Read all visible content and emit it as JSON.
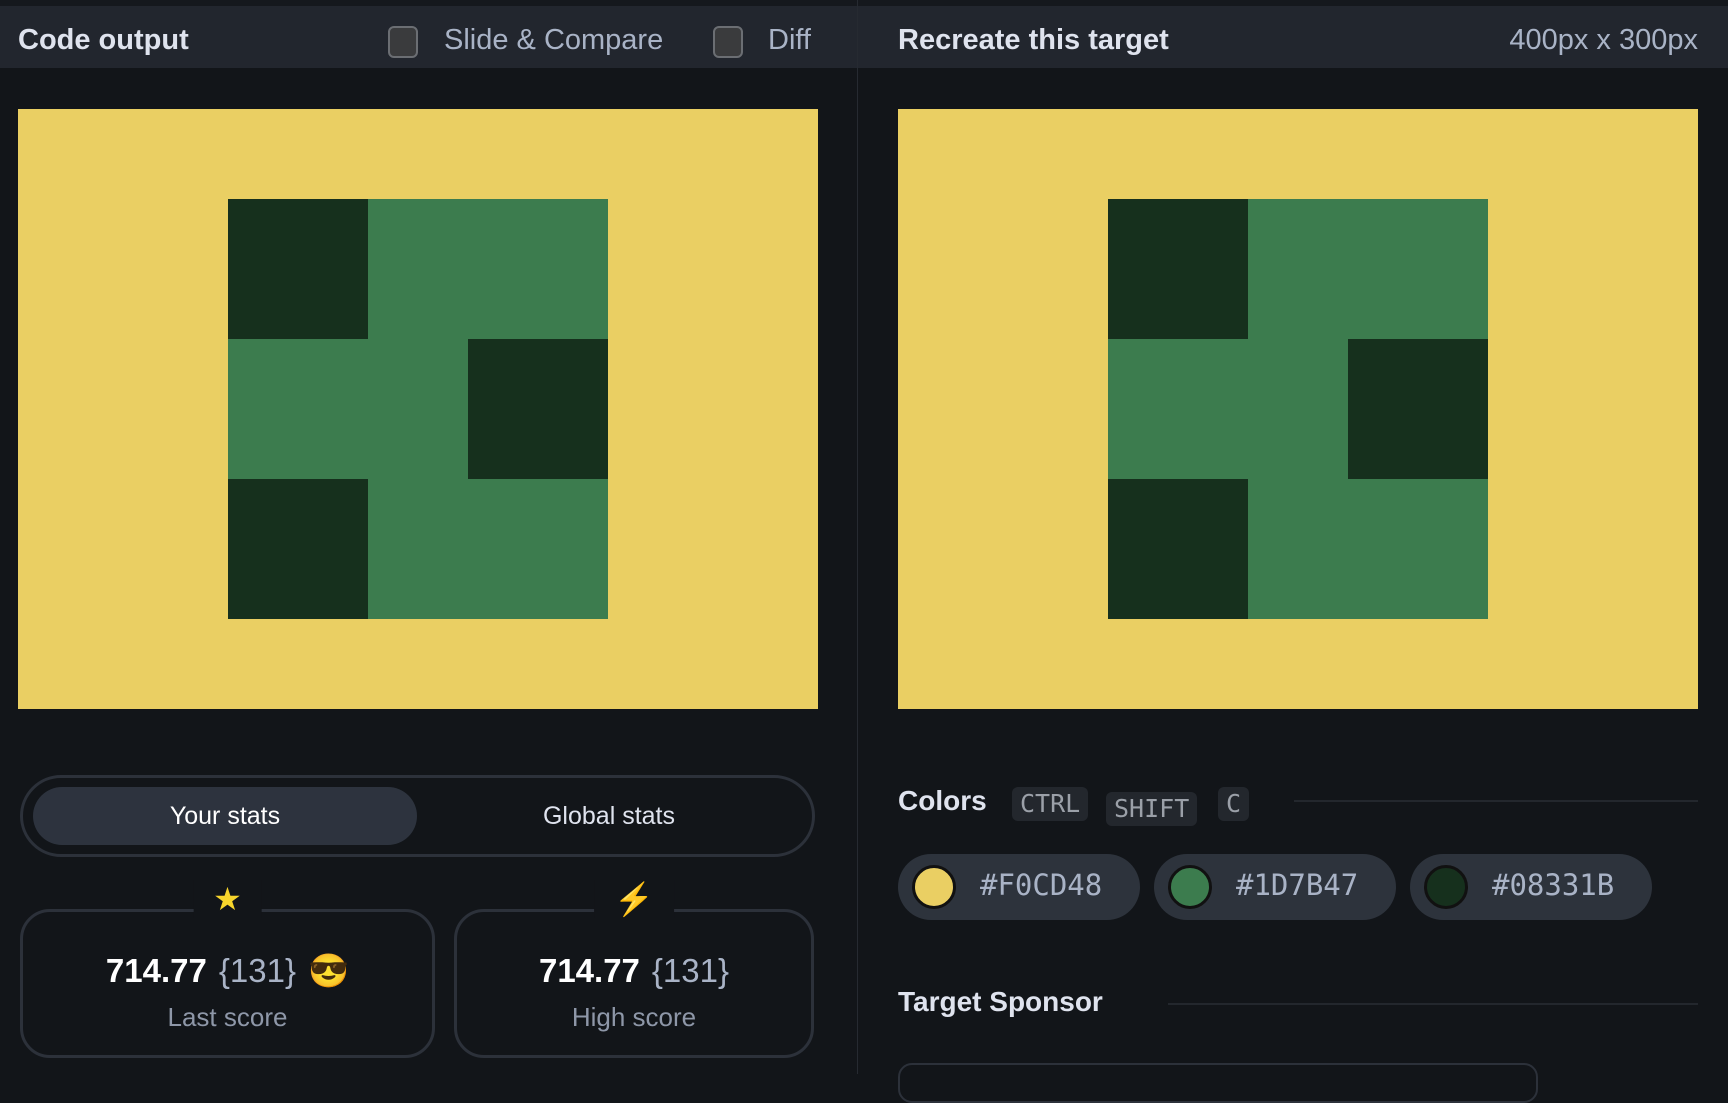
{
  "left_header": {
    "title": "Code output",
    "slide_compare": "Slide & Compare",
    "diff": "Diff"
  },
  "right_header": {
    "title": "Recreate this target",
    "size": "400px x 300px"
  },
  "tabs": {
    "your_stats": "Your stats",
    "global_stats": "Global stats"
  },
  "stats": [
    {
      "icon": "star-icon",
      "score": "714.77",
      "count": "{131}",
      "emoji": "😎",
      "label": "Last score"
    },
    {
      "icon": "lightning-icon",
      "score": "714.77",
      "count": "{131}",
      "label": "High score"
    }
  ],
  "colors": {
    "title": "Colors",
    "shortcut": [
      "CTRL",
      "SHIFT",
      "C"
    ],
    "swatches": [
      "#F0CD48",
      "#1D7B47",
      "#08331B"
    ]
  },
  "sponsor": {
    "title": "Target Sponsor"
  }
}
